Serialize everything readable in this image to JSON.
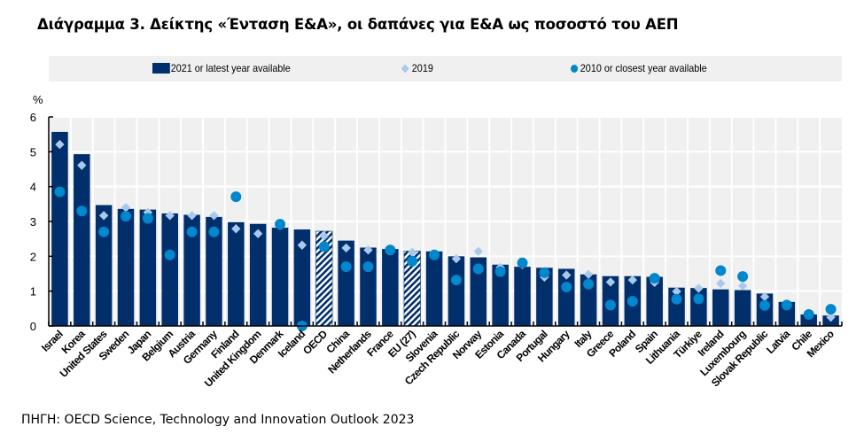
{
  "title": "Διάγραμμα 3. Δείκτης «Ένταση Ε&Α», οι δαπάνες για Ε&Α ως ποσοστό του ΑΕΠ",
  "source": "ΠΗΓΗ: OECD Science, Technology and Innovation Outlook 2023",
  "colors": {
    "bar": "#002f6c",
    "bar_hatch_bg": "#ffffff",
    "diamond_2019": "#a9c9ec",
    "dot_2010": "#0087cd",
    "plot_bg": "#f0f0f0",
    "grid": "#ffffff"
  },
  "chart_data": {
    "type": "bar",
    "title": "Διάγραμμα 3. Δείκτης «Ένταση Ε&Α», οι δαπάνες για Ε&Α ως ποσοστό του ΑΕΠ",
    "xlabel": "",
    "ylabel": "%",
    "ylim": [
      0,
      6
    ],
    "yticks": [
      0,
      1,
      2,
      3,
      4,
      5,
      6
    ],
    "grid": true,
    "legend_position": "top",
    "categories": [
      "Israel",
      "Korea",
      "United States",
      "Sweden",
      "Japan",
      "Belgium",
      "Austria",
      "Germany",
      "Finland",
      "United Kingdom",
      "Denmark",
      "Iceland",
      "OECD",
      "China",
      "Netherlands",
      "France",
      "EU (27)",
      "Slovenia",
      "Czech Republic",
      "Norway",
      "Estonia",
      "Canada",
      "Portugal",
      "Hungary",
      "Italy",
      "Greece",
      "Poland",
      "Spain",
      "Lithuania",
      "Türkiye",
      "Ireland",
      "Luxembourg",
      "Slovak Republic",
      "Latvia",
      "Chile",
      "Mexico"
    ],
    "hatched_categories": [
      "OECD",
      "EU (27)"
    ],
    "series": [
      {
        "name": "2021 or latest year available",
        "kind": "bar",
        "values": [
          5.57,
          4.93,
          3.47,
          3.36,
          3.34,
          3.23,
          3.19,
          3.13,
          2.98,
          2.93,
          2.82,
          2.77,
          2.72,
          2.45,
          2.25,
          2.21,
          2.15,
          2.14,
          2.0,
          1.97,
          1.76,
          1.7,
          1.67,
          1.64,
          1.48,
          1.43,
          1.43,
          1.41,
          1.1,
          1.09,
          1.05,
          1.03,
          0.93,
          0.69,
          0.33,
          0.3
        ]
      },
      {
        "name": "2019",
        "kind": "diamond",
        "values": [
          5.21,
          4.61,
          3.17,
          3.4,
          3.26,
          3.17,
          3.17,
          3.17,
          2.79,
          2.65,
          2.88,
          2.32,
          2.58,
          2.24,
          2.18,
          2.2,
          2.11,
          2.05,
          1.93,
          2.14,
          1.68,
          1.76,
          1.4,
          1.46,
          1.48,
          1.26,
          1.32,
          1.25,
          0.99,
          1.08,
          1.22,
          1.15,
          0.84,
          0.64,
          0.34,
          0.25
        ]
      },
      {
        "name": "2010 or closest year available",
        "kind": "dot",
        "values": [
          3.85,
          3.3,
          2.7,
          3.15,
          3.09,
          2.04,
          2.7,
          2.7,
          3.71,
          null,
          2.92,
          0.0,
          2.28,
          1.7,
          1.7,
          2.18,
          1.86,
          2.04,
          1.32,
          1.64,
          1.56,
          1.81,
          1.53,
          1.12,
          1.2,
          0.6,
          0.71,
          1.37,
          0.77,
          0.78,
          1.59,
          1.42,
          0.59,
          0.6,
          0.33,
          0.48
        ]
      }
    ]
  },
  "legend": [
    {
      "label": "2021 or latest year available",
      "marker": "bar-swatch"
    },
    {
      "label": "2019",
      "marker": "diamond"
    },
    {
      "label": "2010 or closest year available",
      "marker": "dot"
    }
  ]
}
